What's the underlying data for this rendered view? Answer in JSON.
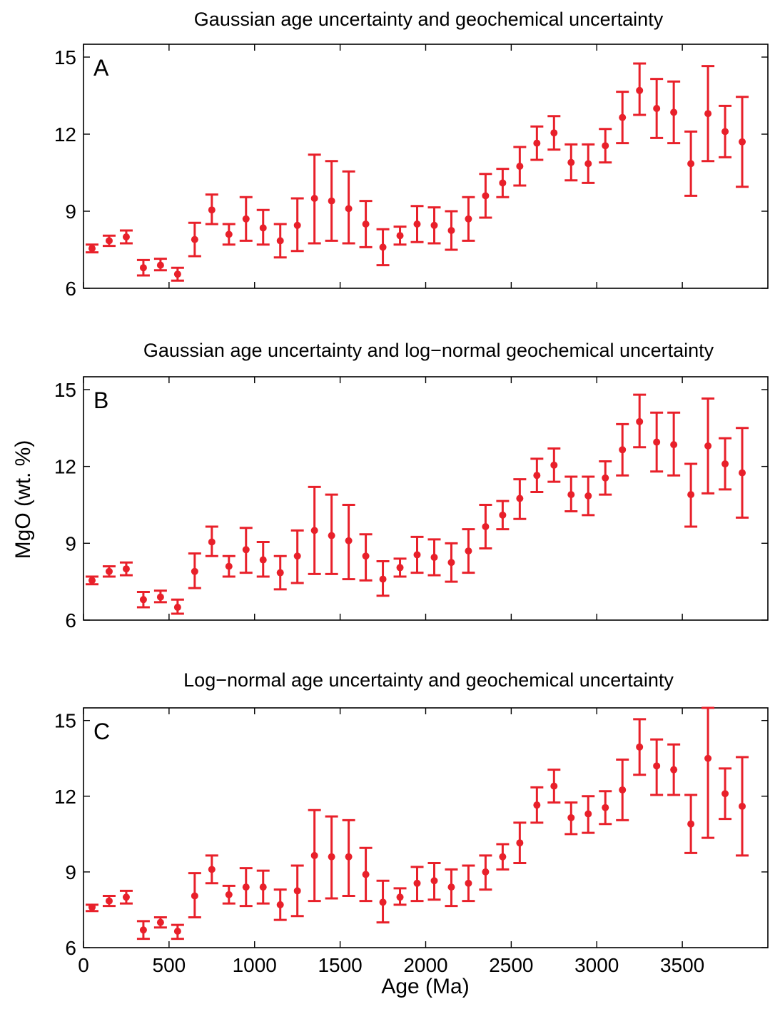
{
  "figure": {
    "ylabel": "MgO (wt. %)",
    "xlabel": "Age (Ma)",
    "series_color": "#e8202a",
    "x_ticks": [
      0,
      500,
      1000,
      1500,
      2000,
      2500,
      3000,
      3500
    ],
    "y_ticks": [
      6,
      9,
      12,
      15
    ]
  },
  "chart_data": [
    {
      "type": "scatter",
      "panel_label": "A",
      "title": "Gaussian age uncertainty and geochemical uncertainty",
      "xlim": [
        0,
        4000
      ],
      "ylim": [
        6,
        15.5
      ],
      "x": [
        50,
        150,
        250,
        350,
        450,
        550,
        650,
        750,
        850,
        950,
        1050,
        1150,
        1250,
        1350,
        1450,
        1550,
        1650,
        1750,
        1850,
        1950,
        2050,
        2150,
        2250,
        2350,
        2450,
        2550,
        2650,
        2750,
        2850,
        2950,
        3050,
        3150,
        3250,
        3350,
        3450,
        3550,
        3650,
        3750,
        3850
      ],
      "y": [
        7.55,
        7.85,
        8.0,
        6.8,
        6.9,
        6.55,
        7.9,
        9.05,
        8.1,
        8.7,
        8.35,
        7.85,
        8.45,
        9.5,
        9.4,
        9.1,
        8.5,
        7.6,
        8.05,
        8.5,
        8.45,
        8.25,
        8.7,
        9.6,
        10.1,
        10.75,
        11.65,
        12.05,
        10.9,
        10.85,
        11.55,
        12.65,
        13.7,
        13.0,
        12.85,
        10.85,
        12.8,
        12.1,
        11.7
      ],
      "y_low": [
        7.4,
        7.65,
        7.75,
        6.5,
        6.7,
        6.3,
        7.25,
        8.5,
        7.7,
        7.85,
        7.7,
        7.2,
        7.45,
        7.75,
        7.85,
        7.75,
        7.6,
        6.9,
        7.7,
        7.8,
        7.75,
        7.5,
        7.85,
        8.75,
        9.55,
        10.0,
        11.0,
        11.4,
        10.2,
        10.1,
        10.9,
        11.65,
        12.75,
        11.85,
        11.65,
        9.6,
        10.95,
        11.1,
        9.95
      ],
      "y_high": [
        7.7,
        8.05,
        8.25,
        7.1,
        7.15,
        6.8,
        8.55,
        9.65,
        8.5,
        9.55,
        9.05,
        8.5,
        9.5,
        11.2,
        10.95,
        10.55,
        9.4,
        8.3,
        8.4,
        9.2,
        9.15,
        9.0,
        9.55,
        10.45,
        10.65,
        11.5,
        12.3,
        12.7,
        11.6,
        11.6,
        12.2,
        13.65,
        14.75,
        14.15,
        14.05,
        12.1,
        14.65,
        13.1,
        13.45
      ]
    },
    {
      "type": "scatter",
      "panel_label": "B",
      "title": "Gaussian age uncertainty and log−normal geochemical uncertainty",
      "xlim": [
        0,
        4000
      ],
      "ylim": [
        6,
        15.5
      ],
      "x": [
        50,
        150,
        250,
        350,
        450,
        550,
        650,
        750,
        850,
        950,
        1050,
        1150,
        1250,
        1350,
        1450,
        1550,
        1650,
        1750,
        1850,
        1950,
        2050,
        2150,
        2250,
        2350,
        2450,
        2550,
        2650,
        2750,
        2850,
        2950,
        3050,
        3150,
        3250,
        3350,
        3450,
        3550,
        3650,
        3750,
        3850
      ],
      "y": [
        7.55,
        7.9,
        8.0,
        6.8,
        6.9,
        6.5,
        7.9,
        9.05,
        8.1,
        8.75,
        8.35,
        7.85,
        8.5,
        9.5,
        9.3,
        9.1,
        8.5,
        7.6,
        8.05,
        8.55,
        8.45,
        8.25,
        8.7,
        9.65,
        10.1,
        10.75,
        11.65,
        12.05,
        10.9,
        10.85,
        11.55,
        12.65,
        13.75,
        12.95,
        12.85,
        10.9,
        12.8,
        12.1,
        11.75
      ],
      "y_low": [
        7.4,
        7.7,
        7.75,
        6.5,
        6.7,
        6.25,
        7.25,
        8.5,
        7.7,
        7.85,
        7.7,
        7.2,
        7.45,
        7.8,
        7.8,
        7.6,
        7.55,
        6.95,
        7.7,
        7.85,
        7.75,
        7.5,
        7.85,
        8.8,
        9.55,
        9.95,
        11.0,
        11.4,
        10.25,
        10.1,
        10.9,
        11.65,
        12.75,
        11.8,
        11.65,
        9.65,
        10.95,
        11.1,
        10.0
      ],
      "y_high": [
        7.7,
        8.1,
        8.25,
        7.1,
        7.15,
        6.8,
        8.6,
        9.65,
        8.5,
        9.6,
        9.05,
        8.5,
        9.5,
        11.2,
        10.9,
        10.5,
        9.35,
        8.3,
        8.4,
        9.25,
        9.15,
        9.0,
        9.55,
        10.5,
        10.65,
        11.5,
        12.3,
        12.7,
        11.6,
        11.6,
        12.2,
        13.65,
        14.8,
        14.1,
        14.1,
        12.1,
        14.65,
        13.1,
        13.5
      ]
    },
    {
      "type": "scatter",
      "panel_label": "C",
      "title": "Log−normal age uncertainty and geochemical uncertainty",
      "xlim": [
        0,
        4000
      ],
      "ylim": [
        6,
        15.5
      ],
      "x": [
        50,
        150,
        250,
        350,
        450,
        550,
        650,
        750,
        850,
        950,
        1050,
        1150,
        1250,
        1350,
        1450,
        1550,
        1650,
        1750,
        1850,
        1950,
        2050,
        2150,
        2250,
        2350,
        2450,
        2550,
        2650,
        2750,
        2850,
        2950,
        3050,
        3150,
        3250,
        3350,
        3450,
        3550,
        3650,
        3750,
        3850
      ],
      "y": [
        7.6,
        7.85,
        8.0,
        6.7,
        7.0,
        6.65,
        8.05,
        9.1,
        8.1,
        8.4,
        8.4,
        7.7,
        8.25,
        9.65,
        9.6,
        9.6,
        8.9,
        7.8,
        8.0,
        8.55,
        8.65,
        8.4,
        8.55,
        9.0,
        9.6,
        10.15,
        11.65,
        12.4,
        11.15,
        11.3,
        11.55,
        12.25,
        13.95,
        13.2,
        13.05,
        10.9,
        13.5,
        12.1,
        11.6
      ],
      "y_low": [
        7.45,
        7.65,
        7.75,
        6.35,
        6.8,
        6.35,
        7.2,
        8.55,
        7.75,
        7.65,
        7.75,
        7.1,
        7.25,
        7.85,
        7.95,
        8.05,
        7.85,
        7.0,
        7.7,
        7.85,
        7.9,
        7.65,
        7.85,
        8.3,
        9.1,
        9.35,
        10.95,
        11.75,
        10.5,
        10.55,
        10.9,
        11.05,
        12.85,
        12.05,
        12.05,
        9.75,
        10.35,
        11.1,
        9.65
      ],
      "y_high": [
        7.7,
        8.05,
        8.25,
        7.05,
        7.2,
        6.9,
        8.95,
        9.65,
        8.45,
        9.15,
        9.05,
        8.3,
        9.25,
        11.45,
        11.2,
        11.05,
        9.95,
        8.65,
        8.35,
        9.2,
        9.35,
        9.1,
        9.25,
        9.65,
        10.1,
        10.95,
        12.35,
        13.05,
        11.75,
        12.0,
        12.2,
        13.45,
        15.05,
        14.25,
        14.05,
        12.05,
        15.5,
        13.1,
        13.55
      ]
    }
  ]
}
